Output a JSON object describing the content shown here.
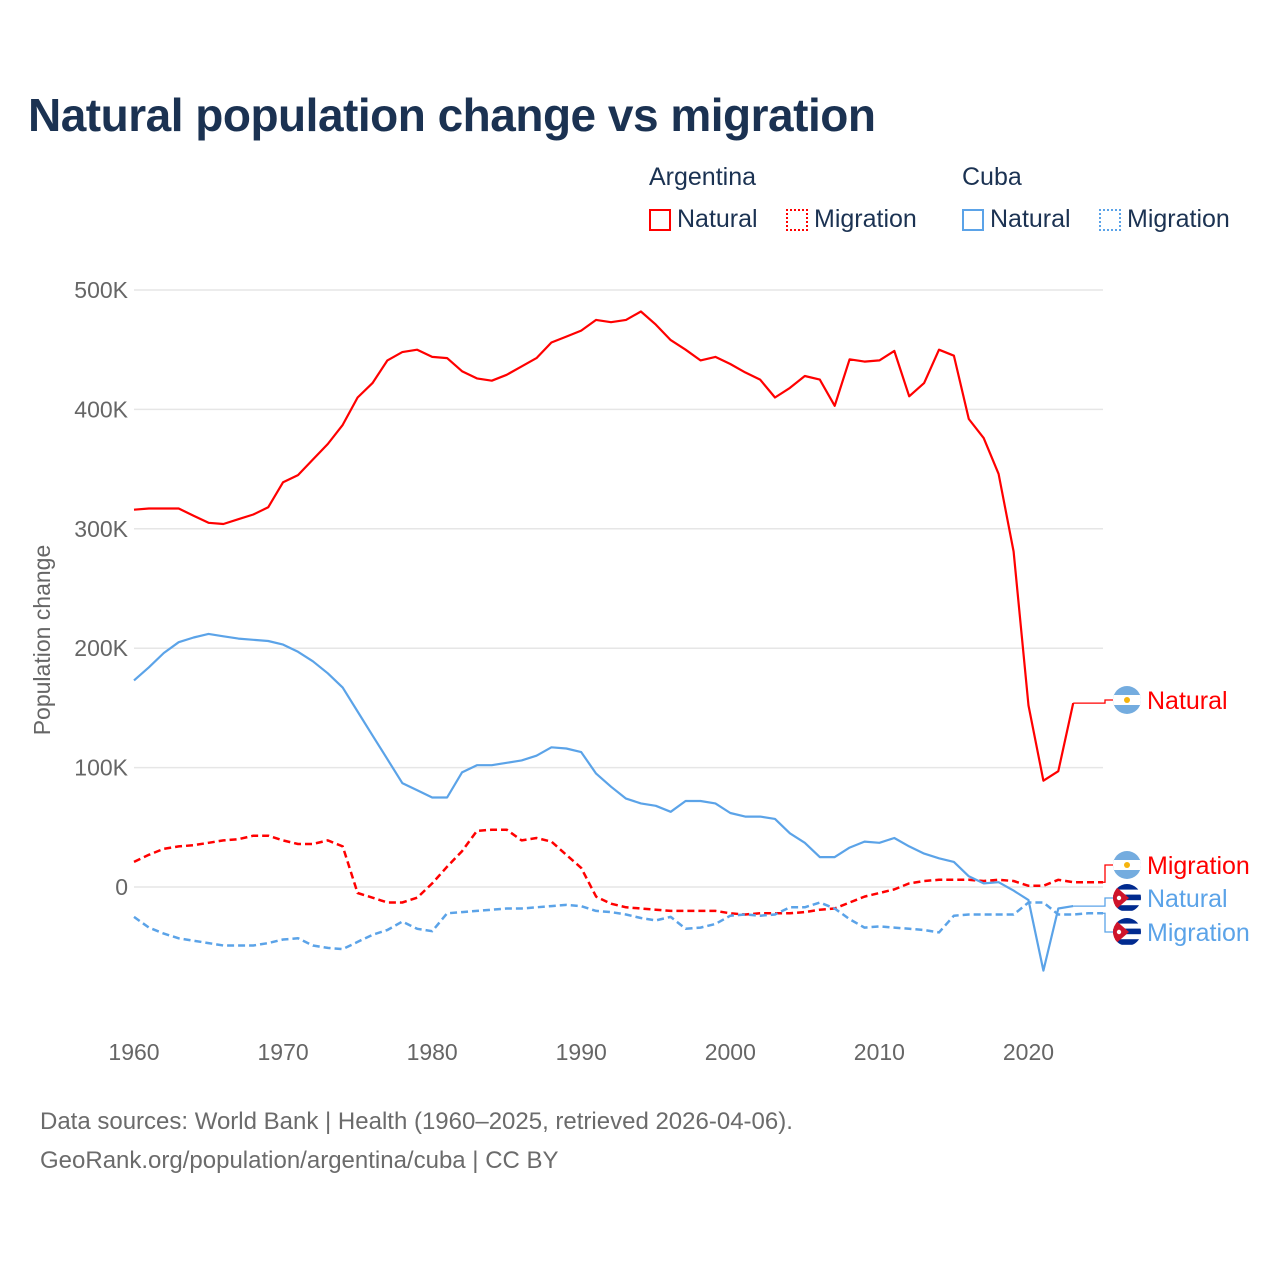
{
  "title": "Natural population change vs migration",
  "legend": {
    "groups": [
      {
        "name": "Argentina",
        "items": [
          "Natural",
          "Migration"
        ]
      },
      {
        "name": "Cuba",
        "items": [
          "Natural",
          "Migration"
        ]
      }
    ]
  },
  "footer": {
    "line1": "Data sources: World Bank | Health (1960–2025, retrieved 2026-04-06).",
    "line2": "GeoRank.org/population/argentina/cuba | CC BY"
  },
  "colors": {
    "argentina": "#ff0000",
    "cuba": "#5ba3e8",
    "grid": "#e6e6e6"
  },
  "chart_data": {
    "type": "line",
    "title": "Natural population change vs migration",
    "xlabel": "",
    "ylabel": "Population change",
    "xlim": [
      1960,
      2025
    ],
    "ylim": [
      -100,
      500
    ],
    "y_unit": "thousands",
    "x_ticks": [
      "1960",
      "1970",
      "1980",
      "1990",
      "2000",
      "2010",
      "2020"
    ],
    "y_ticks": [
      {
        "v": 0,
        "label": "0"
      },
      {
        "v": 100,
        "label": "100K"
      },
      {
        "v": 200,
        "label": "200K"
      },
      {
        "v": 300,
        "label": "300K"
      },
      {
        "v": 400,
        "label": "400K"
      },
      {
        "v": 500,
        "label": "500K"
      }
    ],
    "grid": true,
    "legend_position": "top-right",
    "series": [
      {
        "name": "Argentina Natural",
        "label": "Natural",
        "country": "argentina",
        "style": "solid",
        "start": 1960,
        "values": [
          316,
          317,
          317,
          317,
          311,
          305,
          304,
          308,
          312,
          318,
          339,
          345,
          358,
          371,
          387,
          410,
          422,
          441,
          448,
          450,
          444,
          443,
          432,
          426,
          424,
          429,
          436,
          443,
          456,
          461,
          466,
          475,
          473,
          475,
          482,
          471,
          458,
          450,
          441,
          444,
          438,
          431,
          425,
          410,
          418,
          428,
          425,
          403,
          442,
          440,
          441,
          449,
          411,
          422,
          450,
          445,
          392,
          376,
          346,
          281,
          152,
          89,
          97,
          154
        ]
      },
      {
        "name": "Argentina Migration",
        "label": "Migration",
        "country": "argentina",
        "style": "dashed",
        "start": 1960,
        "values": [
          21,
          27,
          32,
          34,
          35,
          37,
          39,
          40,
          43,
          43,
          39,
          36,
          36,
          39,
          34,
          -5,
          -9,
          -13,
          -13,
          -9,
          3,
          17,
          30,
          47,
          48,
          48,
          39,
          41,
          38,
          27,
          16,
          -8,
          -14,
          -17,
          -18,
          -19,
          -20,
          -20,
          -20,
          -20,
          -22,
          -23,
          -22,
          -22,
          -22,
          -21,
          -19,
          -18,
          -13,
          -8,
          -5,
          -2,
          3,
          5,
          6,
          6,
          6,
          5,
          6,
          5,
          1,
          1,
          6,
          4,
          4,
          4
        ]
      },
      {
        "name": "Cuba Natural",
        "label": "Natural",
        "country": "cuba",
        "style": "solid",
        "start": 1960,
        "values": [
          173,
          184,
          196,
          205,
          209,
          212,
          210,
          208,
          207,
          206,
          203,
          197,
          189,
          179,
          167,
          147,
          127,
          107,
          87,
          81,
          75,
          75,
          96,
          102,
          102,
          104,
          106,
          110,
          117,
          116,
          113,
          95,
          84,
          74,
          70,
          68,
          63,
          72,
          72,
          70,
          62,
          59,
          59,
          57,
          45,
          37,
          25,
          25,
          33,
          38,
          37,
          41,
          34,
          28,
          24,
          21,
          9,
          3,
          4,
          -3,
          -11,
          -70,
          -18,
          -16
        ]
      },
      {
        "name": "Cuba Migration",
        "label": "Migration",
        "country": "cuba",
        "style": "dashed",
        "start": 1960,
        "values": [
          -25,
          -34,
          -39,
          -43,
          -45,
          -47,
          -49,
          -49,
          -49,
          -47,
          -44,
          -43,
          -49,
          -51,
          -52,
          -46,
          -40,
          -36,
          -29,
          -35,
          -37,
          -22,
          -21,
          -20,
          -19,
          -18,
          -18,
          -17,
          -16,
          -15,
          -16,
          -20,
          -21,
          -23,
          -26,
          -28,
          -25,
          -35,
          -34,
          -31,
          -24,
          -23,
          -24,
          -23,
          -17,
          -17,
          -13,
          -18,
          -27,
          -34,
          -33,
          -34,
          -35,
          -36,
          -38,
          -24,
          -23,
          -23,
          -23,
          -23,
          -13,
          -13,
          -23,
          -23,
          -22,
          -22
        ]
      }
    ]
  }
}
